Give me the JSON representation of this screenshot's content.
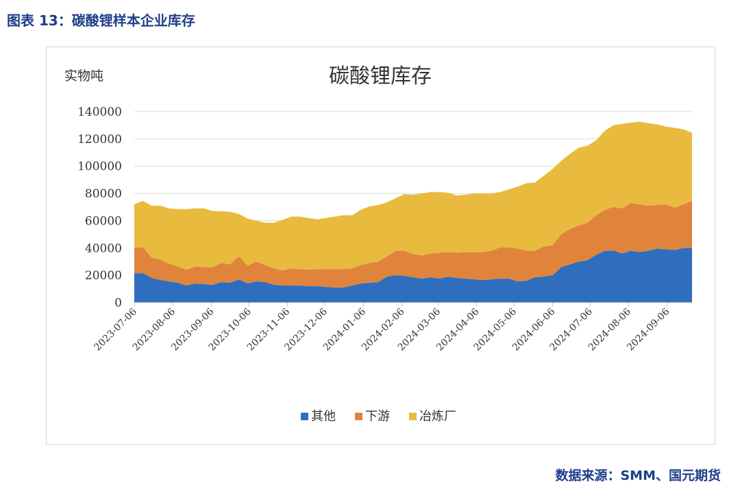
{
  "figure": {
    "caption": "图表 13：碳酸锂样本企业库存",
    "source": "数据来源：SMM、国元期货"
  },
  "chart_data": {
    "type": "area",
    "stacked": true,
    "title": "碳酸锂库存",
    "ylabel": "实物吨",
    "ylim": [
      0,
      140000
    ],
    "yticks": [
      0,
      20000,
      40000,
      60000,
      80000,
      100000,
      120000,
      140000
    ],
    "grid": true,
    "legend_position": "bottom",
    "x_tick_labels": [
      "2023-07-06",
      "2023-08-06",
      "2023-09-06",
      "2023-10-06",
      "2023-11-06",
      "2023-12-06",
      "2024-01-06",
      "2024-02-06",
      "2024-03-06",
      "2024-04-06",
      "2024-05-06",
      "2024-06-06",
      "2024-07-06",
      "2024-08-06",
      "2024-09-06"
    ],
    "x": [
      "2023-07-06",
      "2023-07-13",
      "2023-07-20",
      "2023-07-27",
      "2023-08-03",
      "2023-08-10",
      "2023-08-17",
      "2023-08-24",
      "2023-08-31",
      "2023-09-07",
      "2023-09-14",
      "2023-09-21",
      "2023-09-28",
      "2023-10-05",
      "2023-10-12",
      "2023-10-19",
      "2023-10-26",
      "2023-11-02",
      "2023-11-09",
      "2023-11-16",
      "2023-11-23",
      "2023-11-30",
      "2023-12-07",
      "2023-12-14",
      "2023-12-21",
      "2023-12-28",
      "2024-01-04",
      "2024-01-11",
      "2024-01-18",
      "2024-01-25",
      "2024-02-01",
      "2024-02-08",
      "2024-02-15",
      "2024-02-22",
      "2024-02-29",
      "2024-03-07",
      "2024-03-14",
      "2024-03-21",
      "2024-03-28",
      "2024-04-04",
      "2024-04-11",
      "2024-04-18",
      "2024-04-25",
      "2024-05-02",
      "2024-05-09",
      "2024-05-16",
      "2024-05-23",
      "2024-05-30",
      "2024-06-06",
      "2024-06-13",
      "2024-06-20",
      "2024-06-27",
      "2024-07-04",
      "2024-07-11",
      "2024-07-18",
      "2024-07-25",
      "2024-08-01",
      "2024-08-08",
      "2024-08-15",
      "2024-08-22",
      "2024-08-29",
      "2024-09-05",
      "2024-09-12",
      "2024-09-19",
      "2024-09-26"
    ],
    "series": [
      {
        "name": "其他",
        "color": "#2f6ebf",
        "values": [
          21500,
          21500,
          18000,
          16500,
          15500,
          14500,
          12500,
          14000,
          13500,
          13000,
          15000,
          14500,
          17000,
          14000,
          15500,
          15000,
          13000,
          12500,
          12500,
          12500,
          12000,
          12000,
          11500,
          11000,
          11000,
          12500,
          14000,
          14500,
          15000,
          19000,
          20000,
          19500,
          18500,
          17500,
          18500,
          17500,
          19000,
          18000,
          17500,
          17000,
          16500,
          17000,
          17500,
          17500,
          15500,
          16000,
          18500,
          19000,
          20000,
          26000,
          28000,
          30000,
          31000,
          35000,
          38000,
          38000,
          36000,
          38000,
          37000,
          38000,
          39500,
          39000,
          38500,
          40000,
          40000
        ]
      },
      {
        "name": "下游",
        "color": "#e0843c",
        "values": [
          19000,
          19000,
          15000,
          15000,
          13000,
          12000,
          11500,
          12500,
          12500,
          13000,
          14000,
          13500,
          17000,
          13000,
          14500,
          12500,
          12000,
          11000,
          12500,
          12000,
          12000,
          12500,
          13000,
          13500,
          13500,
          12500,
          13500,
          14500,
          15000,
          15000,
          18000,
          18500,
          17000,
          17000,
          17500,
          19000,
          18000,
          18500,
          19500,
          20000,
          20500,
          21000,
          23000,
          23000,
          24000,
          22000,
          19500,
          22000,
          22000,
          24000,
          26000,
          26500,
          27500,
          29000,
          30000,
          32000,
          33000,
          35000,
          35000,
          33000,
          32000,
          33000,
          31000,
          32000,
          34500
        ]
      },
      {
        "name": "冶炼厂",
        "color": "#e8bb3f",
        "values": [
          31500,
          34000,
          38000,
          39500,
          40500,
          42000,
          44500,
          42500,
          43000,
          41000,
          38000,
          38500,
          31000,
          34500,
          30000,
          31000,
          33500,
          37000,
          38000,
          38500,
          38000,
          36500,
          37500,
          38500,
          39500,
          39000,
          40500,
          41500,
          41500,
          39500,
          38500,
          41500,
          43500,
          45500,
          45000,
          44500,
          43500,
          42000,
          42000,
          43000,
          43000,
          42000,
          40500,
          42500,
          45500,
          49500,
          50000,
          52000,
          56000,
          54000,
          55000,
          57000,
          56500,
          55000,
          58000,
          60000,
          62000,
          59000,
          60500,
          60500,
          59000,
          57000,
          58500,
          55000,
          50000
        ]
      }
    ]
  }
}
